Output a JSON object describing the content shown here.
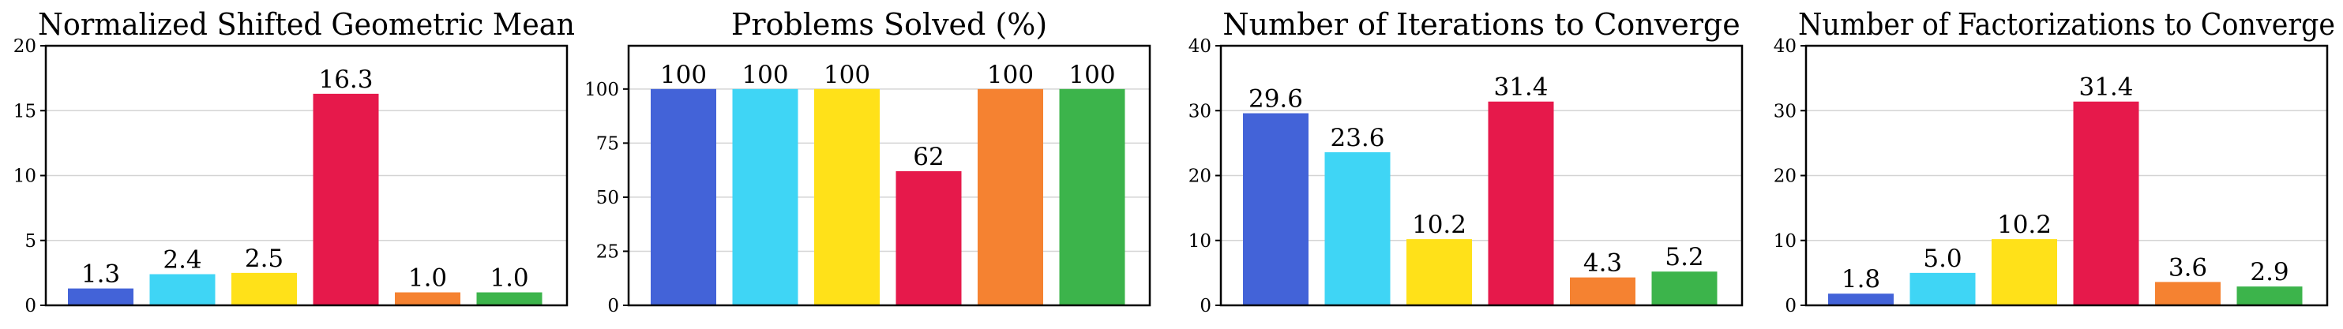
{
  "figure": {
    "panel_count": 4,
    "colors": [
      "#4363d8",
      "#3fd5f5",
      "#ffe119",
      "#e6194b",
      "#f58231",
      "#3cb44b"
    ]
  },
  "chart_data": [
    {
      "type": "bar",
      "title": "Normalized Shifted Geometric Mean",
      "xlabel": "",
      "ylabel": "",
      "ylim": [
        0,
        20
      ],
      "yticks": [
        0,
        5,
        10,
        15,
        20
      ],
      "ytick_labels": [
        "0",
        "5",
        "10",
        "15",
        "20"
      ],
      "grid": true,
      "values": [
        1.3,
        2.4,
        2.5,
        16.3,
        1.0,
        1.0
      ],
      "value_labels": [
        "1.3",
        "2.4",
        "2.5",
        "16.3",
        "1.0",
        "1.0"
      ]
    },
    {
      "type": "bar",
      "title": "Problems Solved (%)",
      "xlabel": "",
      "ylabel": "",
      "ylim": [
        0,
        120
      ],
      "yticks": [
        0,
        25,
        50,
        75,
        100
      ],
      "ytick_labels": [
        "0",
        "25",
        "50",
        "75",
        "100"
      ],
      "grid": true,
      "values": [
        100,
        100,
        100,
        62,
        100,
        100
      ],
      "value_labels": [
        "100",
        "100",
        "100",
        "62",
        "100",
        "100"
      ]
    },
    {
      "type": "bar",
      "title": "Number of Iterations to Converge",
      "xlabel": "",
      "ylabel": "",
      "ylim": [
        0,
        40
      ],
      "yticks": [
        0,
        10,
        20,
        30,
        40
      ],
      "ytick_labels": [
        "0",
        "10",
        "20",
        "30",
        "40"
      ],
      "grid": true,
      "values": [
        29.6,
        23.6,
        10.2,
        31.4,
        4.3,
        5.2
      ],
      "value_labels": [
        "29.6",
        "23.6",
        "10.2",
        "31.4",
        "4.3",
        "5.2"
      ]
    },
    {
      "type": "bar",
      "title": "Number of Factorizations to Converge",
      "xlabel": "",
      "ylabel": "",
      "ylim": [
        0,
        40
      ],
      "yticks": [
        0,
        10,
        20,
        30,
        40
      ],
      "ytick_labels": [
        "0",
        "10",
        "20",
        "30",
        "40"
      ],
      "grid": true,
      "values": [
        1.8,
        5.0,
        10.2,
        31.4,
        3.6,
        2.9
      ],
      "value_labels": [
        "1.8",
        "5.0",
        "10.2",
        "31.4",
        "3.6",
        "2.9"
      ]
    }
  ]
}
